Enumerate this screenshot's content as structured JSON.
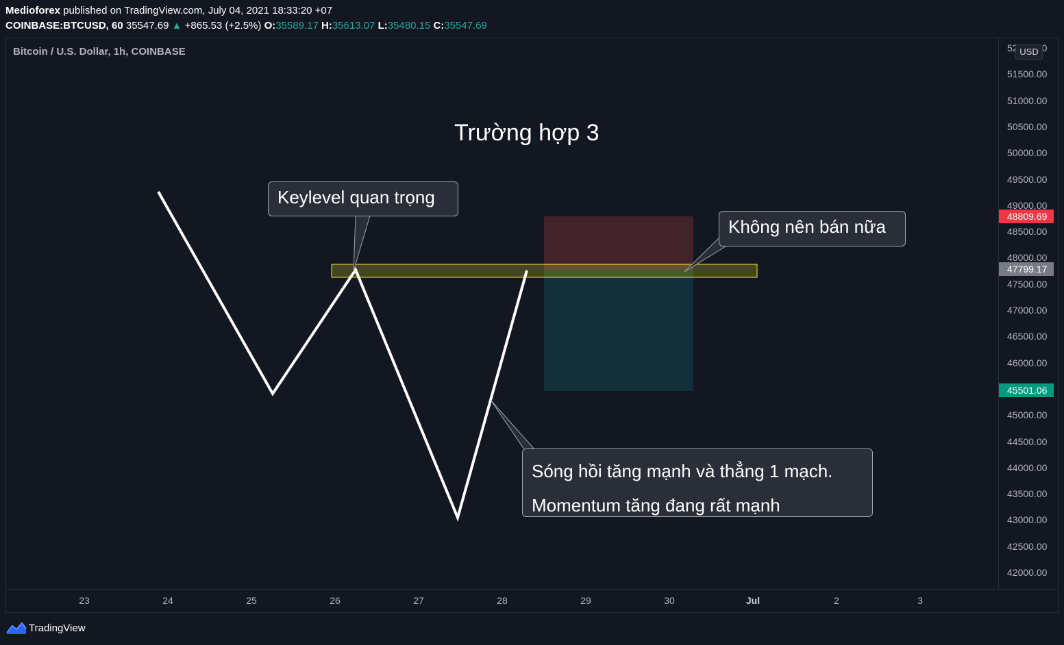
{
  "header": {
    "author": "Medioforex",
    "published_text": "published on TradingView.com, July 04, 2021 18:33:20 +07",
    "symbol": "COINBASE:BTCUSD, 60",
    "last": "35547.69",
    "change_arrow": "▲",
    "change": "+865.53 (+2.5%)",
    "o_label": "O:",
    "o": "35589.17",
    "h_label": "H:",
    "h": "35613.07",
    "l_label": "L:",
    "l": "35480.15",
    "c_label": "C:",
    "c": "35547.69"
  },
  "pane_title": "Bitcoin / U.S. Dollar, 1h, COINBASE",
  "currency": "USD",
  "price_axis": [
    "52000.00",
    "51500.00",
    "51000.00",
    "50500.00",
    "50000.00",
    "49500.00",
    "49000.00",
    "48500.00",
    "48000.00",
    "47500.00",
    "47000.00",
    "46500.00",
    "46000.00",
    "45500.00",
    "45000.00",
    "44500.00",
    "44000.00",
    "43500.00",
    "43000.00",
    "42500.00",
    "42000.00"
  ],
  "price_tags": {
    "stop": "48809.69",
    "entry": "47799.17",
    "target": "45501.06"
  },
  "time_axis": [
    "23",
    "24",
    "25",
    "26",
    "27",
    "28",
    "29",
    "30",
    "Jul",
    "2",
    "3"
  ],
  "annotations": {
    "title": "Trường hợp 3",
    "keylevel": "Keylevel quan trọng",
    "no_sell": "Không nên bán nữa",
    "wave_line1": "Sóng hồi tăng mạnh và thẳng 1 mạch.",
    "wave_line2": "Momentum tăng đang rất mạnh"
  },
  "colors": {
    "background": "#131722",
    "zigzag": "#ffffff",
    "keylevel_fill": "#4d4a1c",
    "keylevel_border": "#f5eb2f",
    "stop_zone": "#43232b",
    "target_zone": "#13303a",
    "up": "#26a69a"
  },
  "footer": {
    "brand": "TradingView"
  }
}
